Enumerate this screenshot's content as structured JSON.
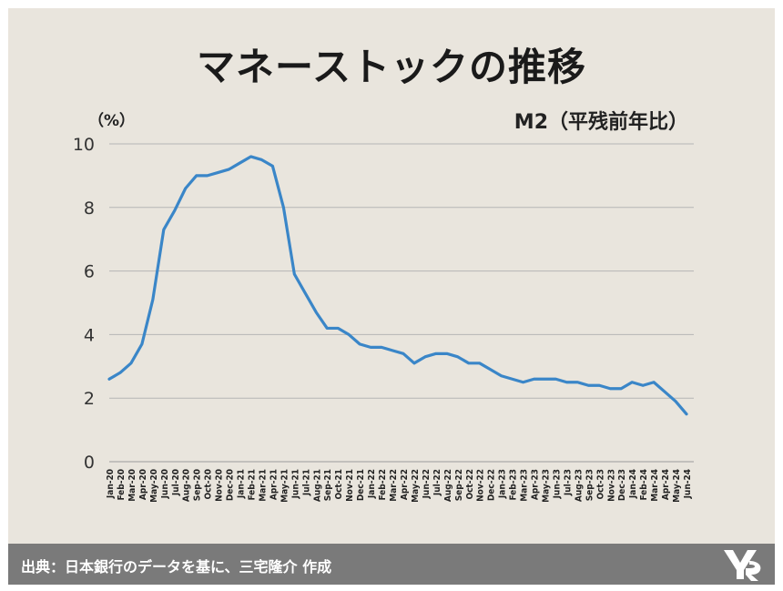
{
  "page": {
    "title": "マネーストックの推移",
    "unit_label": "（%）",
    "series_label": "M2（平残前年比）",
    "source": "出典：日本銀行のデータを基に、三宅隆介 作成",
    "logo_icon": "logo-icon"
  },
  "chart_data": {
    "type": "line",
    "title": "マネーストックの推移",
    "ylabel": "（%）",
    "ylim": [
      0,
      10
    ],
    "yticks": [
      0,
      2,
      4,
      6,
      8,
      10
    ],
    "grid": true,
    "line_color": "#3a86c8",
    "categories": [
      "Jan-20",
      "Feb-20",
      "Mar-20",
      "Apr-20",
      "May-20",
      "Jun-20",
      "Jul-20",
      "Aug-20",
      "Sep-20",
      "Oct-20",
      "Nov-20",
      "Dec-20",
      "Jan-21",
      "Feb-21",
      "Mar-21",
      "Apr-21",
      "May-21",
      "Jun-21",
      "Jul-21",
      "Aug-21",
      "Sep-21",
      "Oct-21",
      "Nov-21",
      "Dec-21",
      "Jan-22",
      "Feb-22",
      "Mar-22",
      "Apr-22",
      "May-22",
      "Jun-22",
      "Jul-22",
      "Aug-22",
      "Sep-22",
      "Oct-22",
      "Nov-22",
      "Dec-22",
      "Jan-23",
      "Feb-23",
      "Mar-23",
      "Apr-23",
      "May-23",
      "Jun-23",
      "Jul-23",
      "Aug-23",
      "Sep-23",
      "Oct-23",
      "Nov-23",
      "Dec-23",
      "Jan-24",
      "Feb-24",
      "Mar-24",
      "Apr-24",
      "May-24",
      "Jun-24"
    ],
    "series": [
      {
        "name": "M2（平残前年比）",
        "values": [
          2.6,
          2.8,
          3.1,
          3.7,
          5.1,
          7.3,
          7.9,
          8.6,
          9.0,
          9.0,
          9.1,
          9.2,
          9.4,
          9.6,
          9.5,
          9.3,
          8.0,
          5.9,
          5.3,
          4.7,
          4.2,
          4.2,
          4.0,
          3.7,
          3.6,
          3.6,
          3.5,
          3.4,
          3.1,
          3.3,
          3.4,
          3.4,
          3.3,
          3.1,
          3.1,
          2.9,
          2.7,
          2.6,
          2.5,
          2.6,
          2.6,
          2.6,
          2.5,
          2.5,
          2.4,
          2.4,
          2.3,
          2.3,
          2.5,
          2.4,
          2.5,
          2.2,
          1.9,
          1.5
        ]
      }
    ]
  }
}
